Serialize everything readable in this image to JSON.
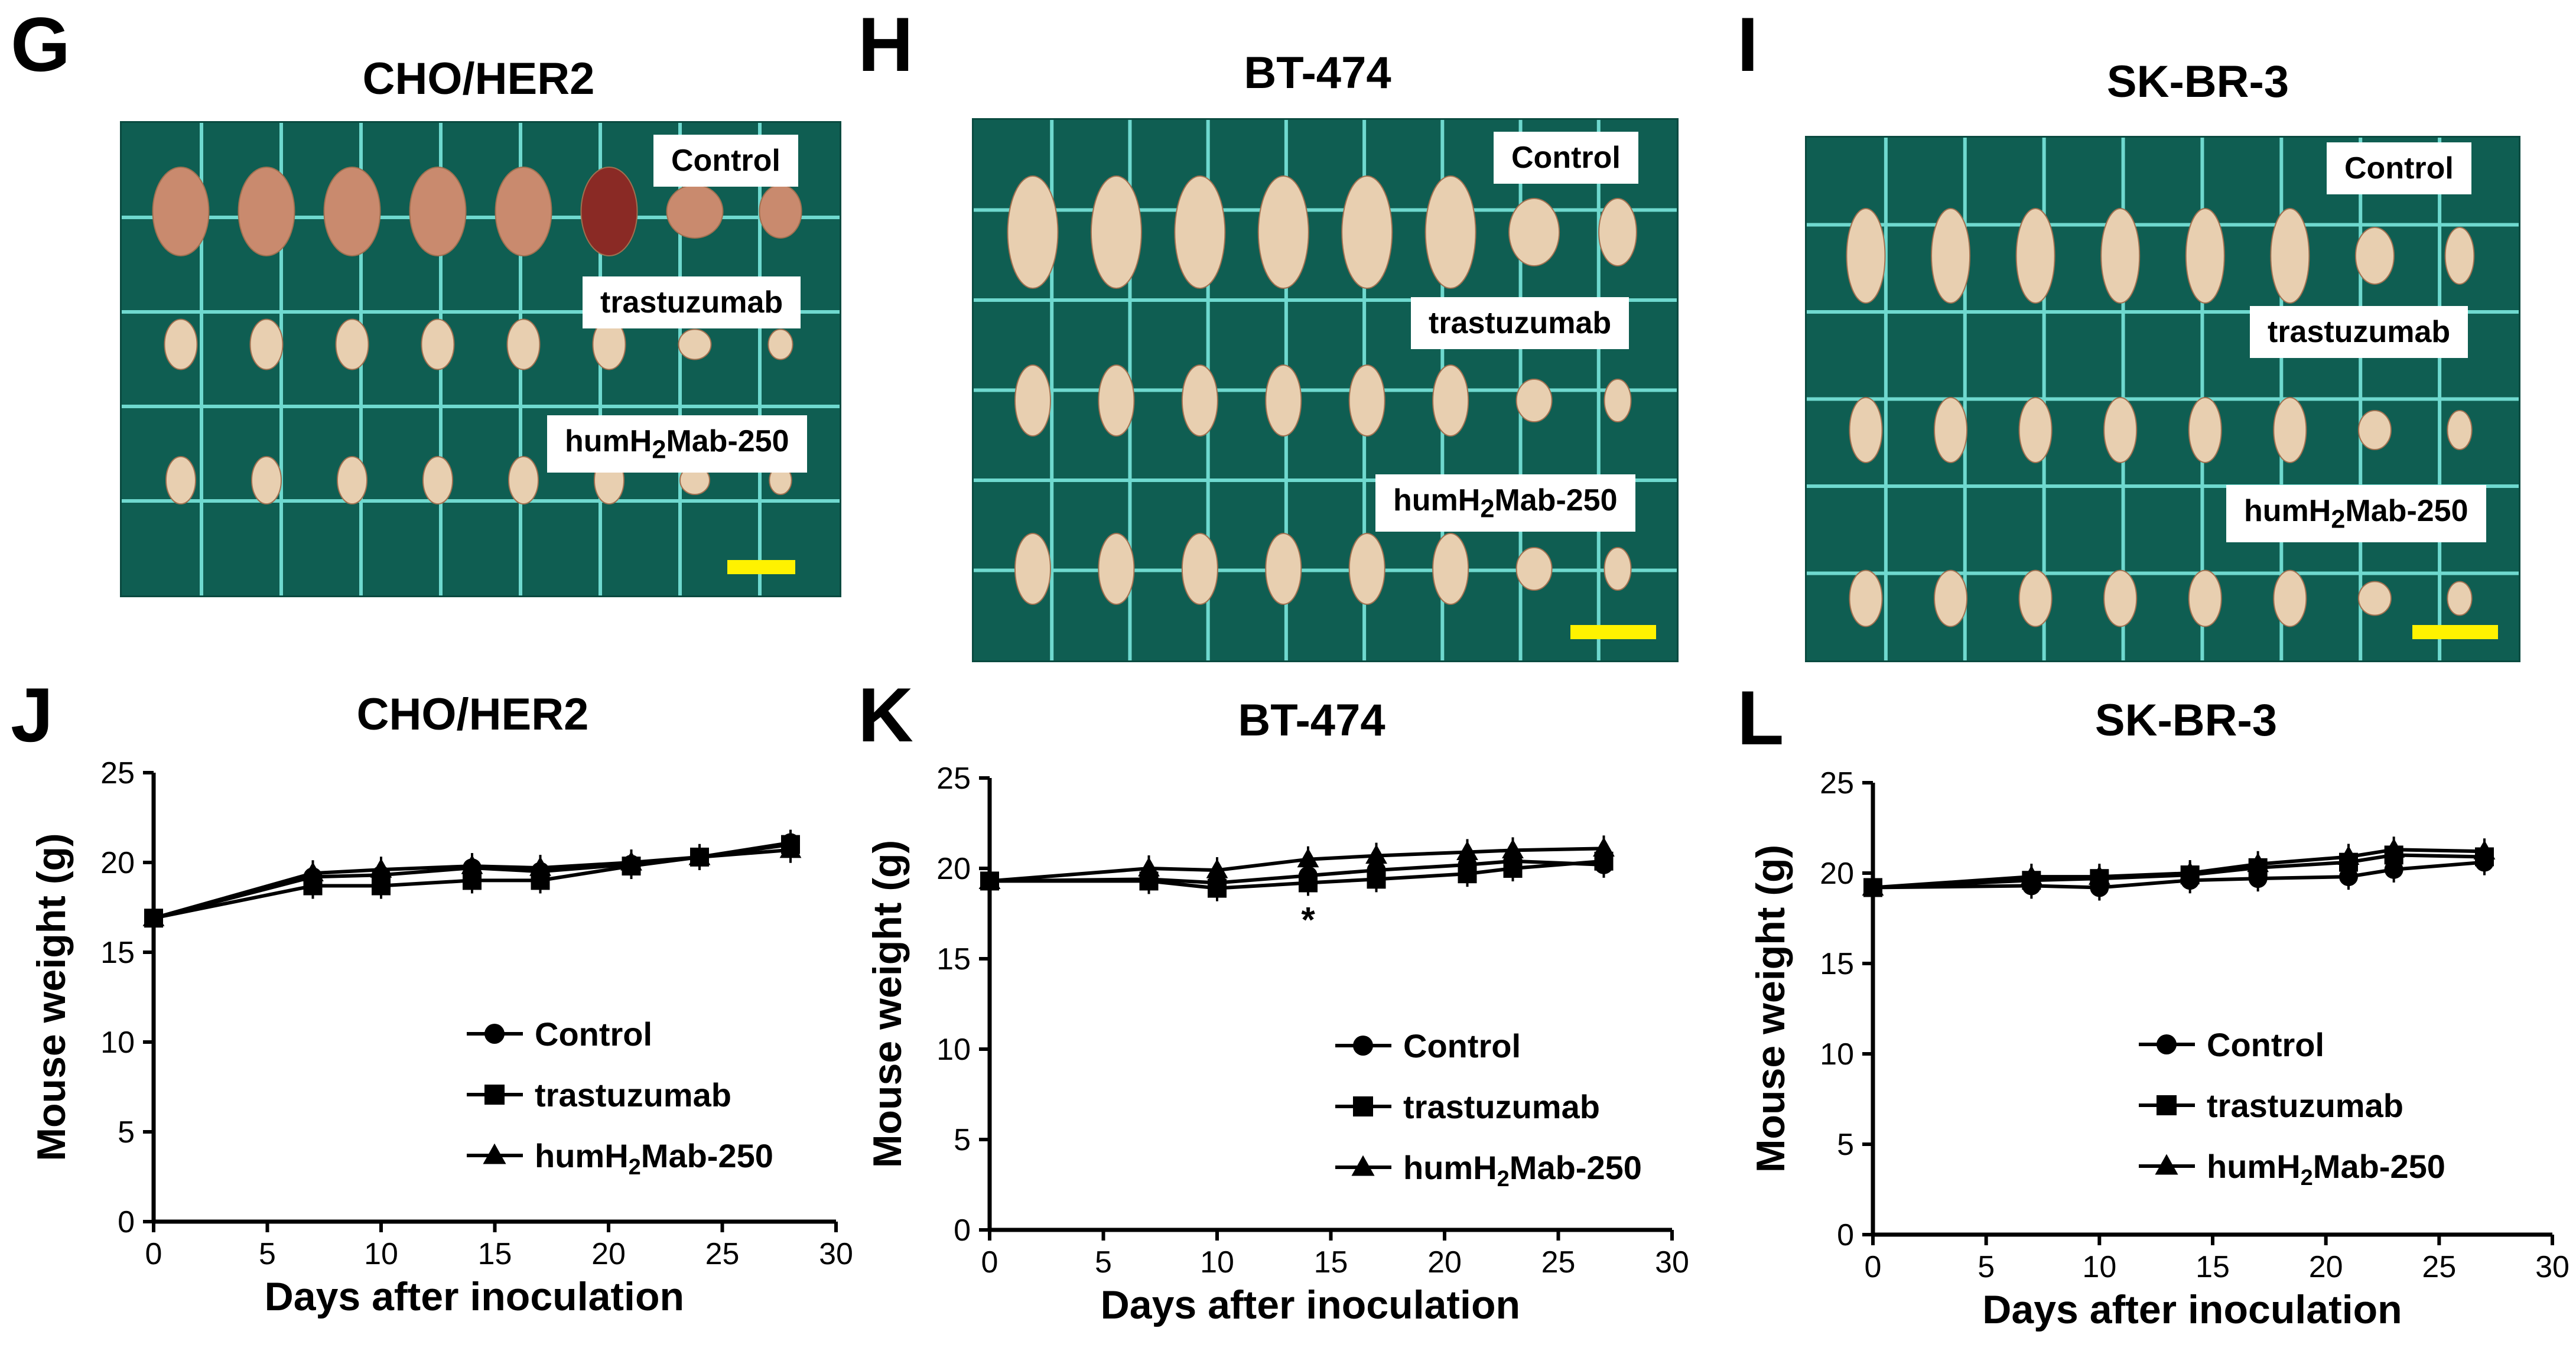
{
  "panels": {
    "G": "G",
    "H": "H",
    "I": "I",
    "J": "J",
    "K": "K",
    "L": "L"
  },
  "photos": [
    {
      "title": "CHO/HER2",
      "labels": {
        "control": "Control",
        "trastuzumab": "trastuzumab",
        "hum_prefix": "humH",
        "hum_sub": "2",
        "hum_suffix": "Mab-250"
      }
    },
    {
      "title": "BT-474",
      "labels": {
        "control": "Control",
        "trastuzumab": "trastuzumab",
        "hum_prefix": "humH",
        "hum_sub": "2",
        "hum_suffix": "Mab-250"
      }
    },
    {
      "title": "SK-BR-3",
      "labels": {
        "control": "Control",
        "trastuzumab": "trastuzumab",
        "hum_prefix": "humH",
        "hum_sub": "2",
        "hum_suffix": "Mab-250"
      }
    }
  ],
  "colors": {
    "grid_background": "#0f5e52",
    "grid_lines": "#6fd9cf",
    "scale_bar": "#fff200",
    "tumor": "#e8cfb0"
  },
  "chart_data": [
    {
      "type": "line",
      "title": "CHO/HER2",
      "xlabel": "Days after inoculation",
      "ylabel": "Mouse weight (g)",
      "xlim": [
        0,
        30
      ],
      "ylim": [
        0,
        25
      ],
      "xticks": [
        0,
        5,
        10,
        15,
        20,
        25,
        30
      ],
      "yticks": [
        0,
        5,
        10,
        15,
        20,
        25
      ],
      "legend": "center-right",
      "annotations": [],
      "series": [
        {
          "name": "Control",
          "marker": "circle",
          "x": [
            0,
            7,
            10,
            14,
            17,
            21,
            24,
            28
          ],
          "values": [
            16.9,
            19.2,
            19.3,
            19.7,
            19.5,
            19.9,
            20.3,
            21.1
          ]
        },
        {
          "name": "trastuzumab",
          "marker": "square",
          "x": [
            0,
            7,
            10,
            14,
            17,
            21,
            24,
            28
          ],
          "values": [
            16.9,
            18.7,
            18.7,
            19.0,
            19.0,
            19.8,
            20.3,
            21.0
          ]
        },
        {
          "name": "humH2Mab-250",
          "marker": "triangle",
          "x": [
            0,
            7,
            10,
            14,
            17,
            21,
            24,
            28
          ],
          "values": [
            16.9,
            19.4,
            19.6,
            19.8,
            19.7,
            20.0,
            20.3,
            20.7
          ]
        }
      ],
      "legend_labels": {
        "control": "Control",
        "trastuzumab": "trastuzumab",
        "hum_prefix": "humH",
        "hum_sub": "2",
        "hum_suffix": "Mab-250"
      }
    },
    {
      "type": "line",
      "title": "BT-474",
      "xlabel": "Days after inoculation",
      "ylabel": "Mouse weight (g)",
      "xlim": [
        0,
        30
      ],
      "ylim": [
        0,
        25
      ],
      "xticks": [
        0,
        5,
        10,
        15,
        20,
        25,
        30
      ],
      "yticks": [
        0,
        5,
        10,
        15,
        20,
        25
      ],
      "legend": "center-right",
      "annotations": [
        {
          "text": "*",
          "x": 14,
          "y": 17.8
        }
      ],
      "series": [
        {
          "name": "Control",
          "marker": "circle",
          "x": [
            0,
            7,
            10,
            14,
            17,
            21,
            23,
            27
          ],
          "values": [
            19.3,
            19.4,
            19.2,
            19.6,
            19.9,
            20.2,
            20.4,
            20.2
          ]
        },
        {
          "name": "trastuzumab",
          "marker": "square",
          "x": [
            0,
            7,
            10,
            14,
            17,
            21,
            23,
            27
          ],
          "values": [
            19.3,
            19.3,
            18.9,
            19.2,
            19.4,
            19.7,
            20.0,
            20.4
          ]
        },
        {
          "name": "humH2Mab-250",
          "marker": "triangle",
          "x": [
            0,
            7,
            10,
            14,
            17,
            21,
            23,
            27
          ],
          "values": [
            19.3,
            20.0,
            19.9,
            20.5,
            20.7,
            20.9,
            21.0,
            21.1
          ]
        }
      ],
      "legend_labels": {
        "control": "Control",
        "trastuzumab": "trastuzumab",
        "hum_prefix": "humH",
        "hum_sub": "2",
        "hum_suffix": "Mab-250"
      }
    },
    {
      "type": "line",
      "title": "SK-BR-3",
      "xlabel": "Days after inoculation",
      "ylabel": "Mouse weight (g)",
      "xlim": [
        0,
        30
      ],
      "ylim": [
        0,
        25
      ],
      "xticks": [
        0,
        5,
        10,
        15,
        20,
        25,
        30
      ],
      "yticks": [
        0,
        5,
        10,
        15,
        20,
        25
      ],
      "legend": "center-right",
      "annotations": [],
      "series": [
        {
          "name": "Control",
          "marker": "circle",
          "x": [
            0,
            7,
            10,
            14,
            17,
            21,
            23,
            27
          ],
          "values": [
            19.2,
            19.3,
            19.2,
            19.6,
            19.7,
            19.8,
            20.2,
            20.6
          ]
        },
        {
          "name": "trastuzumab",
          "marker": "square",
          "x": [
            0,
            7,
            10,
            14,
            17,
            21,
            23,
            27
          ],
          "values": [
            19.2,
            19.6,
            19.7,
            19.9,
            20.3,
            20.6,
            21.0,
            20.9
          ]
        },
        {
          "name": "humH2Mab-250",
          "marker": "triangle",
          "x": [
            0,
            7,
            10,
            14,
            17,
            21,
            23,
            27
          ],
          "values": [
            19.2,
            19.8,
            19.8,
            20.0,
            20.5,
            20.9,
            21.3,
            21.2
          ]
        }
      ],
      "legend_labels": {
        "control": "Control",
        "trastuzumab": "trastuzumab",
        "hum_prefix": "humH",
        "hum_sub": "2",
        "hum_suffix": "Mab-250"
      }
    }
  ]
}
